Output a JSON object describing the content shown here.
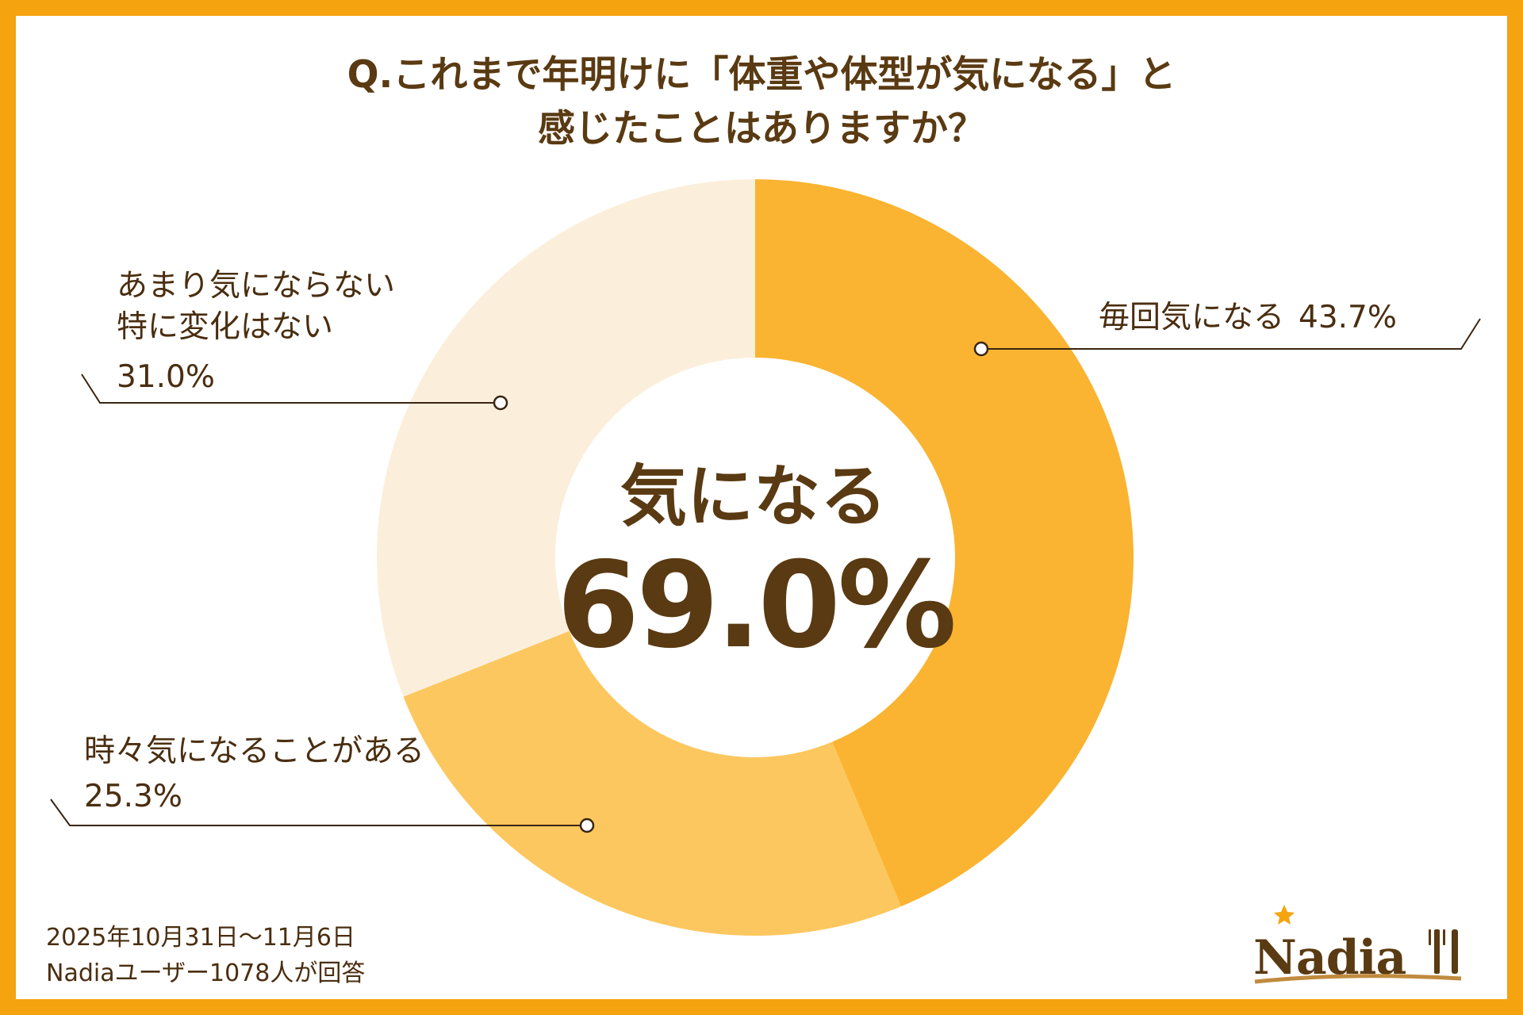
{
  "title": {
    "line1": "Q.これまで年明けに「体重や体型が気になる」と",
    "line2": "感じたことはありますか？"
  },
  "chart_data": {
    "type": "pie",
    "categories": [
      "毎回気になる",
      "時々気になることがある",
      "あまり気にならない 特に変化はない"
    ],
    "values": [
      43.7,
      25.3,
      31.0
    ],
    "unit": "%",
    "colors": [
      "#FAB431",
      "#FCC75E",
      "#FBEFDC"
    ],
    "center": {
      "label": "気になる",
      "value": "69.0%"
    }
  },
  "labels": {
    "slice1": {
      "name": "毎回気になる",
      "value": "43.7%"
    },
    "slice2": {
      "line1": "時々気になることがある",
      "value": "25.3%"
    },
    "slice3": {
      "line1": "あまり気にならない",
      "line2": "特に変化はない",
      "value": "31.0%"
    }
  },
  "footer": {
    "date": "2025年10月31日〜11月6日",
    "respondents": "Nadiaユーザー1078人が回答"
  },
  "logo": {
    "text": "Nadia",
    "icon": "fork-knife-icon"
  },
  "colors": {
    "frame": "#F5A30F",
    "text": "#5A3A12",
    "leader": "#3A2510"
  }
}
